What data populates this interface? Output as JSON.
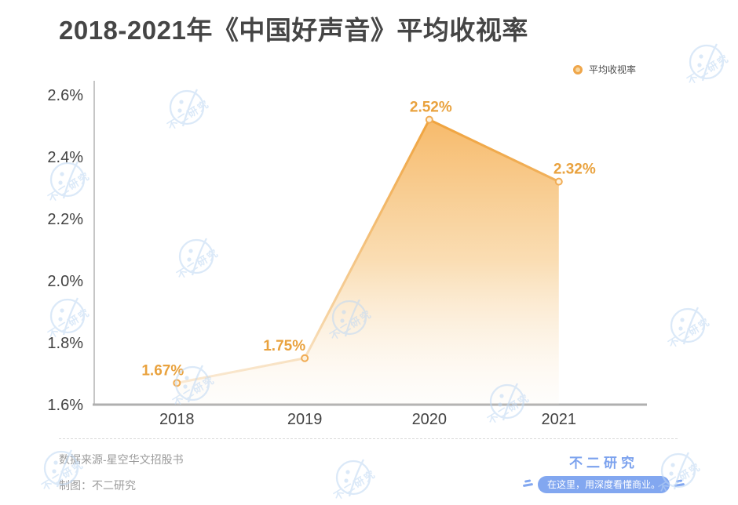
{
  "title": "2018-2021年《中国好声音》平均收视率",
  "legend": {
    "label": "平均收视率"
  },
  "chart_data": {
    "type": "area",
    "title": "2018-2021年《中国好声音》平均收视率",
    "categories": [
      "2018",
      "2019",
      "2020",
      "2021"
    ],
    "series": [
      {
        "name": "平均收视率",
        "values": [
          1.67,
          1.75,
          2.52,
          2.32
        ]
      }
    ],
    "value_labels": [
      "1.67%",
      "1.75%",
      "2.52%",
      "2.32%"
    ],
    "xlabel": "",
    "ylabel": "",
    "ylim": [
      1.6,
      2.6
    ],
    "ytick_step": 0.2,
    "ytick_labels": [
      "1.6%",
      "1.8%",
      "2.0%",
      "2.2%",
      "2.4%",
      "2.6%"
    ],
    "grid": false,
    "legend_position": "top-right",
    "colors": {
      "line": "#F1A843",
      "area_top": "#F5AD4F",
      "area_bottom": "#FBF1E3",
      "value_label": "#E9A23E",
      "axis": "#AFAFAF",
      "tick_text": "#424242"
    }
  },
  "footer": {
    "source": "数据来源-星空华文招股书",
    "credit": "制图：不二研究"
  },
  "branding": {
    "name": "不二研究",
    "tagline": "在这里，用深度看懂商业。",
    "color": "#7CA2EE"
  },
  "watermark": {
    "text": "不二研究",
    "color": "#BFD8F4"
  }
}
